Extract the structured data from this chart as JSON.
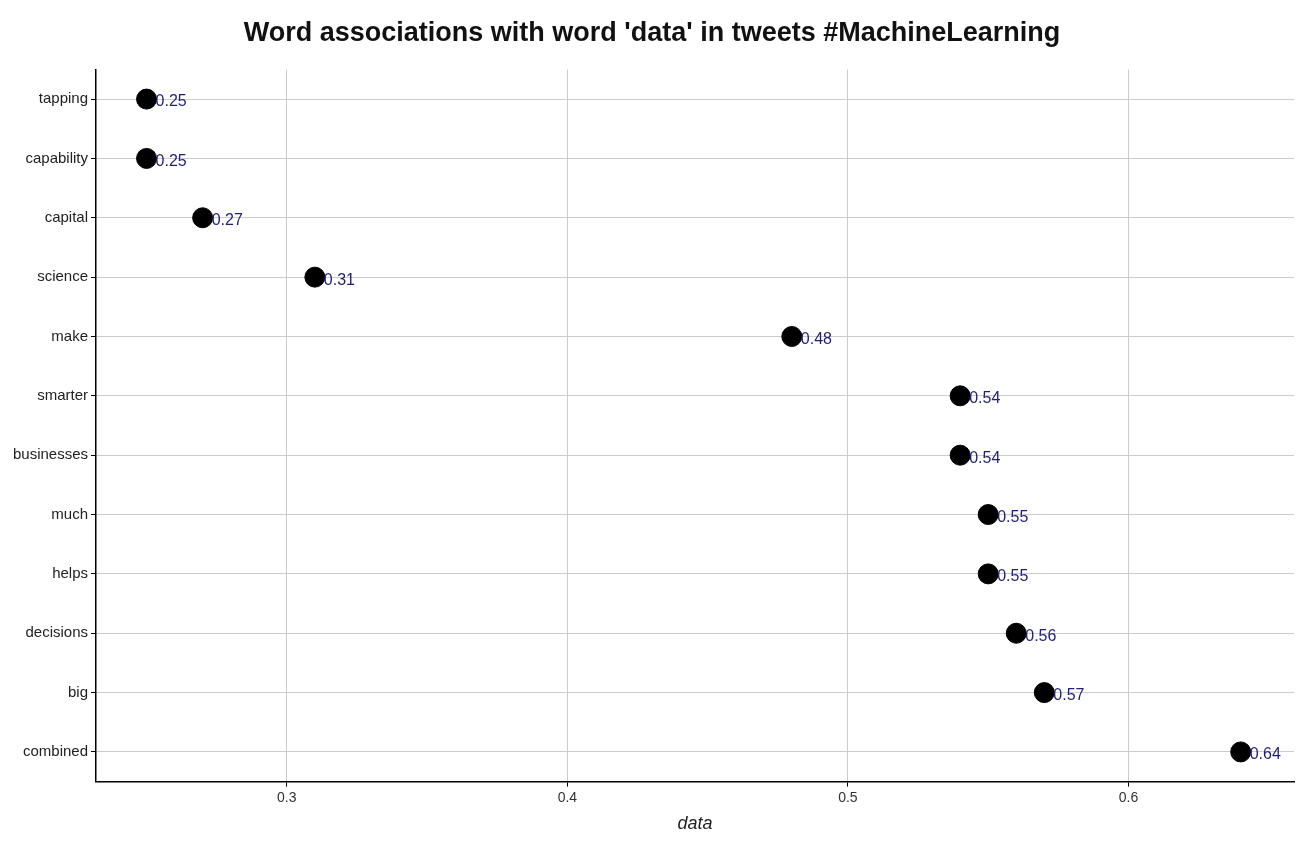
{
  "chart_data": {
    "type": "scatter",
    "orientation": "horizontal",
    "title": "Word associations with word 'data' in tweets #MachineLearning",
    "xlabel": "data",
    "categories": [
      "tapping",
      "capability",
      "capital",
      "science",
      "make",
      "smarter",
      "businesses",
      "much",
      "helps",
      "decisions",
      "big",
      "combined"
    ],
    "values": [
      0.25,
      0.25,
      0.27,
      0.31,
      0.48,
      0.54,
      0.54,
      0.55,
      0.55,
      0.56,
      0.57,
      0.64
    ],
    "color": "#000000",
    "marker": "circle",
    "data_labels": true,
    "xlim": [
      0.232,
      0.659
    ],
    "xticks": [
      0.3,
      0.4,
      0.5,
      0.6
    ],
    "grid": true,
    "legend": false
  }
}
